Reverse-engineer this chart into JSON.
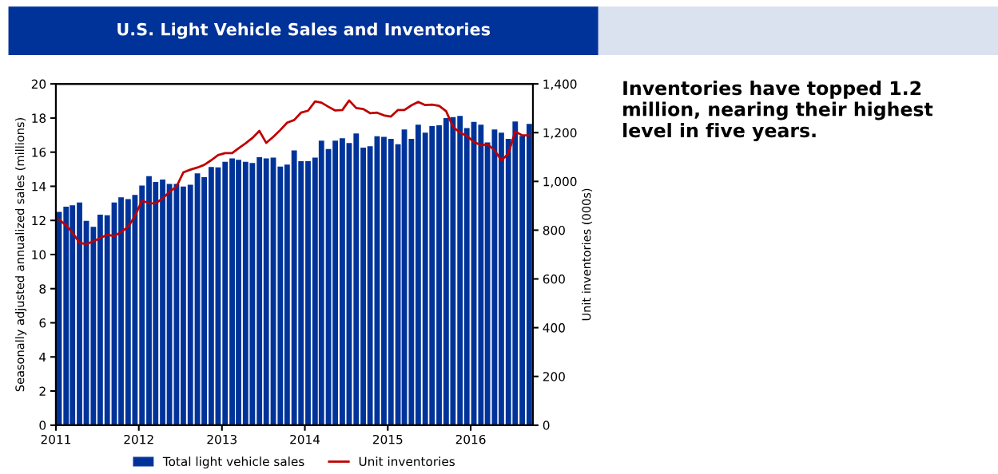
{
  "chart_data": {
    "type": "bar",
    "title": "U.S. Light Vehicle Sales and Inventories",
    "ylabel": "Seasonally adjusted annualized sales (millions)",
    "y2label": "Unit inventories (000s)",
    "annotations": [
      "Inventories have topped 1.2 million, nearing their highest level in five years."
    ],
    "x": [
      "2011-01-15",
      "2011-02-15",
      "2011-03-15",
      "2011-04-15",
      "2011-05-15",
      "2011-06-15",
      "2011-07-15",
      "2011-08-15",
      "2011-09-15",
      "2011-10-15",
      "2011-11-15",
      "2011-12-15",
      "2012-01-15",
      "2012-02-15",
      "2012-03-15",
      "2012-04-15",
      "2012-05-15",
      "2012-06-15",
      "2012-07-15",
      "2012-08-15",
      "2012-09-15",
      "2012-10-15",
      "2012-11-15",
      "2012-12-15",
      "2013-01-15",
      "2013-02-15",
      "2013-03-15",
      "2013-04-15",
      "2013-05-15",
      "2013-06-15",
      "2013-07-15",
      "2013-08-15",
      "2013-09-15",
      "2013-10-15",
      "2013-11-15",
      "2013-12-15",
      "2014-01-15",
      "2014-02-15",
      "2014-03-15",
      "2014-04-15",
      "2014-05-15",
      "2014-06-15",
      "2014-07-15",
      "2014-08-15",
      "2014-09-15",
      "2014-10-15",
      "2014-11-15",
      "2014-12-15",
      "2015-01-15",
      "2015-02-15",
      "2015-03-15",
      "2015-04-15",
      "2015-05-15",
      "2015-06-15",
      "2015-07-15",
      "2015-08-15",
      "2015-09-15",
      "2015-10-15",
      "2015-11-15",
      "2015-12-15",
      "2016-01-15",
      "2016-02-15",
      "2016-03-15",
      "2016-04-15",
      "2016-05-15",
      "2016-06-15",
      "2016-07-15",
      "2016-08-15",
      "2016-09-15"
    ],
    "series": [
      {
        "name": "Total light vehicle sales",
        "color": "#003399",
        "values": [
          12.5,
          12.81,
          12.89,
          13.05,
          11.98,
          11.62,
          12.34,
          12.3,
          13.05,
          13.36,
          13.25,
          13.49,
          14.04,
          14.59,
          14.25,
          14.4,
          14.14,
          14.14,
          13.99,
          14.09,
          14.76,
          14.53,
          15.13,
          15.11,
          15.44,
          15.63,
          15.55,
          15.44,
          15.36,
          15.71,
          15.63,
          15.68,
          15.16,
          15.27,
          16.1,
          15.47,
          15.47,
          15.68,
          16.67,
          16.18,
          16.67,
          16.82,
          16.54,
          17.09,
          16.27,
          16.35,
          16.93,
          16.9,
          16.78,
          16.46,
          17.33,
          16.78,
          17.61,
          17.14,
          17.53,
          17.58,
          18.0,
          18.05,
          18.13,
          17.41,
          17.77,
          17.61,
          16.57,
          17.33,
          17.14,
          16.78,
          17.8,
          16.95,
          17.66
        ]
      },
      {
        "name": "Unit inventories",
        "type": "line",
        "axis": "y2",
        "color": "#c00000",
        "values": [
          844,
          820,
          790,
          748,
          743,
          754,
          768,
          781,
          776,
          792,
          814,
          858,
          921,
          911,
          910,
          930,
          957,
          979,
          1037,
          1048,
          1057,
          1068,
          1087,
          1108,
          1116,
          1116,
          1136,
          1156,
          1178,
          1207,
          1158,
          1183,
          1211,
          1241,
          1252,
          1282,
          1290,
          1328,
          1323,
          1306,
          1291,
          1293,
          1332,
          1301,
          1297,
          1280,
          1282,
          1271,
          1266,
          1293,
          1293,
          1312,
          1326,
          1313,
          1315,
          1310,
          1288,
          1224,
          1200,
          1187,
          1162,
          1148,
          1152,
          1128,
          1086,
          1114,
          1205,
          1189,
          1189
        ]
      }
    ],
    "xlim": [
      "2011-01",
      "2016-10"
    ],
    "xticks": [
      "2011",
      "2012",
      "2013",
      "2014",
      "2015",
      "2016"
    ],
    "ylim": [
      0,
      20
    ],
    "yticks": [
      0,
      2,
      4,
      6,
      8,
      10,
      12,
      14,
      16,
      18,
      20
    ],
    "y2lim": [
      0,
      1400
    ],
    "y2ticks": [
      0,
      {
        "value": 200,
        "label": "200"
      },
      {
        "value": 400,
        "label": "400"
      },
      {
        "value": 600,
        "label": "600"
      },
      {
        "value": 800,
        "label": "800"
      },
      {
        "value": 1000,
        "label": "1,000"
      },
      {
        "value": 1200,
        "label": "1,200"
      },
      {
        "value": 1400,
        "label": "1,400"
      }
    ],
    "legend": "bottom",
    "grid": false,
    "line_style": "solid",
    "marker": "none"
  }
}
